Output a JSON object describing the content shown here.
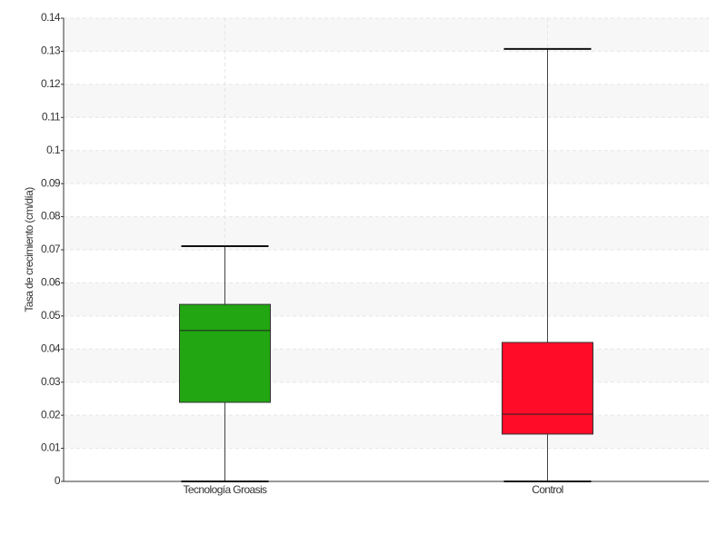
{
  "chart_data": {
    "type": "box",
    "y_label": "Tasa de crecimiento (cm/día)",
    "categories": [
      "Tecnología Groasis",
      "Control"
    ],
    "boxes": [
      {
        "min": 0,
        "q1": 0.0239,
        "median": 0.0456,
        "q3": 0.0535,
        "max": 0.0711,
        "color": "#22a612"
      },
      {
        "min": 0,
        "q1": 0.0143,
        "median": 0.0203,
        "q3": 0.042,
        "max": 0.1307,
        "color": "#ff0c28"
      }
    ],
    "ylim": [
      0,
      0.14
    ],
    "yticks": [
      0,
      0.01,
      0.02,
      0.03,
      0.04,
      0.05,
      0.06,
      0.07,
      0.08,
      0.09,
      0.1,
      0.11,
      0.12,
      0.13,
      0.14
    ],
    "grid": true
  }
}
